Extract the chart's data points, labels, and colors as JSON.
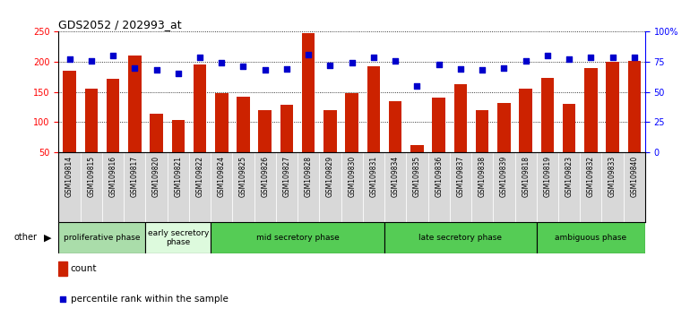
{
  "title": "GDS2052 / 202993_at",
  "samples": [
    "GSM109814",
    "GSM109815",
    "GSM109816",
    "GSM109817",
    "GSM109820",
    "GSM109821",
    "GSM109822",
    "GSM109824",
    "GSM109825",
    "GSM109826",
    "GSM109827",
    "GSM109828",
    "GSM109829",
    "GSM109830",
    "GSM109831",
    "GSM109834",
    "GSM109835",
    "GSM109836",
    "GSM109837",
    "GSM109838",
    "GSM109839",
    "GSM109818",
    "GSM109819",
    "GSM109823",
    "GSM109832",
    "GSM109833",
    "GSM109840"
  ],
  "counts": [
    185,
    155,
    172,
    210,
    114,
    104,
    195,
    148,
    142,
    120,
    128,
    247,
    120,
    148,
    192,
    135,
    62,
    140,
    163,
    120,
    132,
    155,
    173,
    130,
    190,
    200,
    202
  ],
  "percentile": [
    77,
    76,
    80,
    70,
    68,
    65,
    79,
    74,
    71,
    68,
    69,
    81,
    72,
    74,
    79,
    76,
    55,
    73,
    69,
    68,
    70,
    76,
    80,
    77,
    79,
    79,
    79
  ],
  "groups": [
    {
      "label": "proliferative phase",
      "start": 0,
      "end": 3,
      "color": "#aaddaa"
    },
    {
      "label": "early secretory\nphase",
      "start": 4,
      "end": 6,
      "color": "#ddfadd"
    },
    {
      "label": "mid secretory phase",
      "start": 7,
      "end": 14,
      "color": "#55cc55"
    },
    {
      "label": "late secretory phase",
      "start": 15,
      "end": 21,
      "color": "#55cc55"
    },
    {
      "label": "ambiguous phase",
      "start": 22,
      "end": 26,
      "color": "#55cc55"
    }
  ],
  "bar_color": "#cc2200",
  "dot_color": "#0000cc",
  "ylim_left": [
    50,
    250
  ],
  "ylim_right": [
    0,
    100
  ],
  "yticks_left": [
    50,
    100,
    150,
    200,
    250
  ],
  "yticks_right": [
    0,
    25,
    50,
    75,
    100
  ],
  "ytick_labels_right": [
    "0",
    "25",
    "50",
    "75",
    "100%"
  ],
  "legend_count_label": "count",
  "legend_percentile_label": "percentile rank within the sample",
  "other_label": "other",
  "bar_width": 0.6,
  "dot_size": 18
}
